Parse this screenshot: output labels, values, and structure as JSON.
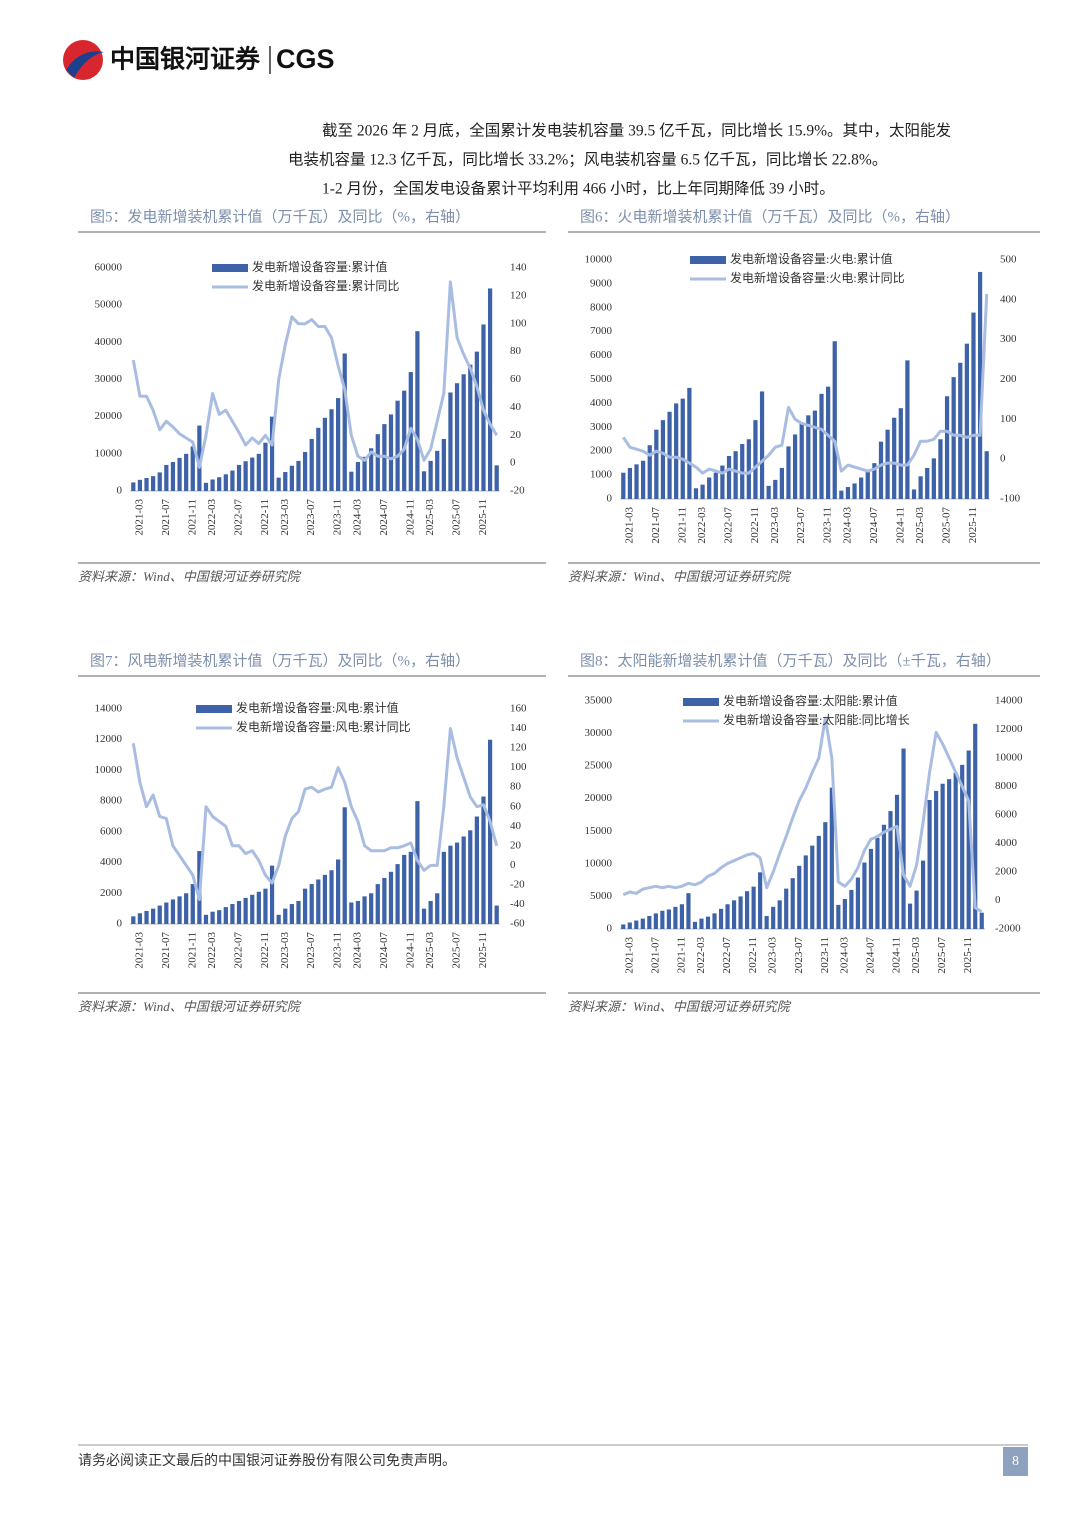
{
  "header": {
    "logo_cn": "中国银河证券",
    "logo_en": "CGS"
  },
  "paragraph_lines": [
    "截至 2026 年 2 月底，全国累计发电装机容量 39.5 亿千瓦，同比增长 15.9%。其中，太阳能发",
    "电装机容量 12.3 亿千瓦，同比增长 33.2%；风电装机容量 6.5 亿千瓦，同比增长 22.8%。",
    "1-2 月份，全国发电设备累计平均利用 466 小时，比上年同期降低 39 小时。"
  ],
  "chart_data": [
    {
      "type": "combo",
      "title": "图5：发电新增装机累计值（万千瓦）及同比（%，右轴）",
      "source": "资料来源：Wind、中国银河证券研究院",
      "categories": [
        null,
        "2021-03",
        null,
        null,
        null,
        "2021-07",
        null,
        null,
        null,
        "2021-11",
        null,
        null,
        "2022-03",
        null,
        null,
        null,
        "2022-07",
        null,
        null,
        null,
        "2022-11",
        null,
        null,
        "2023-03",
        null,
        null,
        null,
        "2023-07",
        null,
        null,
        null,
        "2023-11",
        null,
        null,
        "2024-03",
        null,
        null,
        null,
        "2024-07",
        null,
        null,
        null,
        "2024-11",
        null,
        null,
        "2025-03",
        null,
        null,
        null,
        "2025-07",
        null,
        null,
        null,
        "2025-11",
        null,
        null
      ],
      "series": [
        {
          "name": "发电新增设备容量:累计值",
          "type": "bar",
          "color": "#3d62a8",
          "values": [
            2300,
            3000,
            3500,
            4000,
            5000,
            7000,
            7800,
            8900,
            10000,
            12000,
            17600,
            2200,
            3100,
            3700,
            4500,
            5500,
            7000,
            8000,
            9000,
            10000,
            13000,
            20000,
            3600,
            5100,
            6800,
            8100,
            10500,
            14000,
            17000,
            19700,
            22000,
            25000,
            37000,
            5200,
            7800,
            9200,
            11500,
            15300,
            18000,
            20600,
            24300,
            27000,
            32000,
            43000,
            5300,
            8100,
            10800,
            14000,
            26500,
            29000,
            31400,
            34000,
            37500,
            44800,
            54500,
            6900
          ]
        },
        {
          "name": "发电新增设备容量:累计同比",
          "type": "line",
          "axis": "y2",
          "color": "#a9bde2",
          "values": [
            74,
            48,
            48,
            38,
            24,
            30,
            26,
            21,
            18,
            15,
            -3,
            20,
            50,
            35,
            38,
            30,
            22,
            13,
            18,
            14,
            20,
            13,
            60,
            85,
            105,
            100,
            100,
            103,
            98,
            98,
            90,
            70,
            53,
            20,
            5,
            2,
            8,
            5,
            5,
            3,
            5,
            10,
            25,
            17,
            2,
            10,
            30,
            50,
            130,
            90,
            78,
            68,
            55,
            38,
            28,
            20
          ]
        }
      ],
      "ylim": [
        0,
        60000
      ],
      "yticks": [
        0,
        10000,
        20000,
        30000,
        40000,
        50000,
        60000
      ],
      "y2lim": [
        -20,
        140
      ],
      "y2ticks": [
        -20,
        0,
        20,
        40,
        60,
        80,
        100,
        120,
        140
      ],
      "grid": false
    },
    {
      "type": "combo",
      "title": "图6：火电新增装机累计值（万千瓦）及同比（%，右轴）",
      "source": "资料来源：Wind、中国银河证券研究院",
      "categories": [
        null,
        "2021-03",
        null,
        null,
        null,
        "2021-07",
        null,
        null,
        null,
        "2021-11",
        null,
        null,
        "2022-03",
        null,
        null,
        null,
        "2022-07",
        null,
        null,
        null,
        "2022-11",
        null,
        null,
        "2023-03",
        null,
        null,
        null,
        "2023-07",
        null,
        null,
        null,
        "2023-11",
        null,
        null,
        "2024-03",
        null,
        null,
        null,
        "2024-07",
        null,
        null,
        null,
        "2024-11",
        null,
        null,
        "2025-03",
        null,
        null,
        null,
        "2025-07",
        null,
        null,
        null,
        "2025-11",
        null,
        null
      ],
      "series": [
        {
          "name": "发电新增设备容量:火电:累计值",
          "type": "bar",
          "color": "#3d62a8",
          "values": [
            1100,
            1300,
            1450,
            1600,
            2250,
            2900,
            3300,
            3650,
            4000,
            4200,
            4650,
            450,
            600,
            900,
            1100,
            1400,
            1800,
            2000,
            2300,
            2500,
            3300,
            4500,
            550,
            800,
            1300,
            2200,
            2700,
            3200,
            3500,
            3700,
            4400,
            4700,
            6600,
            350,
            500,
            650,
            900,
            1200,
            1500,
            2400,
            2900,
            3400,
            3800,
            5800,
            400,
            950,
            1300,
            1700,
            2500,
            4300,
            5100,
            5700,
            6500,
            7800,
            9500,
            2000
          ]
        },
        {
          "name": "发电新增设备容量:火电:累计同比",
          "type": "line",
          "axis": "y2",
          "color": "#a9bde2",
          "values": [
            55,
            30,
            25,
            20,
            10,
            20,
            15,
            5,
            5,
            0,
            -10,
            -20,
            -35,
            -25,
            -30,
            -35,
            -25,
            -30,
            -35,
            -35,
            -20,
            -5,
            10,
            30,
            35,
            130,
            100,
            90,
            85,
            80,
            75,
            60,
            45,
            -30,
            -15,
            -20,
            -25,
            -30,
            -25,
            -15,
            -10,
            -10,
            -15,
            -15,
            10,
            45,
            45,
            50,
            70,
            70,
            60,
            60,
            55,
            60,
            60,
            415
          ]
        }
      ],
      "ylim": [
        0,
        10000
      ],
      "yticks": [
        0,
        1000,
        2000,
        3000,
        4000,
        5000,
        6000,
        7000,
        8000,
        9000,
        10000
      ],
      "y2lim": [
        -100,
        500
      ],
      "y2ticks": [
        -100,
        0,
        100,
        200,
        300,
        400,
        500
      ],
      "grid": false
    },
    {
      "type": "combo",
      "title": "图7：风电新增装机累计值（万千瓦）及同比（%，右轴）",
      "source": "资料来源：Wind、中国银河证券研究院",
      "categories": [
        null,
        "2021-03",
        null,
        null,
        null,
        "2021-07",
        null,
        null,
        null,
        "2021-11",
        null,
        null,
        "2022-03",
        null,
        null,
        null,
        "2022-07",
        null,
        null,
        null,
        "2022-11",
        null,
        null,
        "2023-03",
        null,
        null,
        null,
        "2023-07",
        null,
        null,
        null,
        "2023-11",
        null,
        null,
        "2024-03",
        null,
        null,
        null,
        "2024-07",
        null,
        null,
        null,
        "2024-11",
        null,
        null,
        "2025-03",
        null,
        null,
        null,
        "2025-07",
        null,
        null,
        null,
        "2025-11",
        null,
        null
      ],
      "series": [
        {
          "name": "发电新增设备容量:风电:累计值",
          "type": "bar",
          "color": "#3d62a8",
          "values": [
            500,
            700,
            850,
            1000,
            1200,
            1400,
            1600,
            1800,
            2000,
            2600,
            4750,
            600,
            800,
            900,
            1100,
            1300,
            1500,
            1700,
            1900,
            2100,
            2300,
            3800,
            600,
            1000,
            1300,
            1500,
            2300,
            2600,
            2900,
            3200,
            3500,
            4200,
            7600,
            1400,
            1500,
            1800,
            2000,
            2600,
            3000,
            3400,
            3900,
            4500,
            4700,
            8000,
            1000,
            1500,
            2000,
            4700,
            5100,
            5300,
            5700,
            6100,
            7000,
            8300,
            12000,
            1200
          ]
        },
        {
          "name": "发电新增设备容量:风电:累计同比",
          "type": "line",
          "axis": "y2",
          "color": "#a9bde2",
          "values": [
            125,
            85,
            60,
            72,
            50,
            48,
            20,
            10,
            0,
            -10,
            -35,
            60,
            50,
            45,
            40,
            20,
            20,
            12,
            15,
            5,
            -10,
            -18,
            0,
            30,
            48,
            55,
            78,
            80,
            75,
            78,
            80,
            100,
            85,
            60,
            45,
            20,
            15,
            15,
            15,
            18,
            18,
            20,
            23,
            5,
            -5,
            0,
            0,
            60,
            140,
            110,
            90,
            70,
            60,
            62,
            45,
            20
          ]
        }
      ],
      "ylim": [
        0,
        14000
      ],
      "yticks": [
        0,
        2000,
        4000,
        6000,
        8000,
        10000,
        12000,
        14000
      ],
      "y2lim": [
        -60,
        160
      ],
      "y2ticks": [
        -60,
        -40,
        -20,
        0,
        20,
        40,
        60,
        80,
        100,
        120,
        140,
        160
      ],
      "grid": false
    },
    {
      "type": "combo",
      "title": "图8：太阳能新增装机累计值（万千瓦）及同比（±千瓦，右轴）",
      "source": "资料来源：Wind、中国银河证券研究院",
      "categories": [
        null,
        "2021-03",
        null,
        null,
        null,
        "2021-07",
        null,
        null,
        null,
        "2021-11",
        null,
        null,
        "2022-03",
        null,
        null,
        null,
        "2022-07",
        null,
        null,
        null,
        "2022-11",
        null,
        null,
        "2023-03",
        null,
        null,
        null,
        "2023-07",
        null,
        null,
        null,
        "2023-11",
        null,
        null,
        "2024-03",
        null,
        null,
        null,
        "2024-07",
        null,
        null,
        null,
        "2024-11",
        null,
        null,
        "2025-03",
        null,
        null,
        null,
        "2025-07",
        null,
        null,
        null,
        "2025-11",
        null,
        null
      ],
      "series": [
        {
          "name": "发电新增设备容量:太阳能:累计值",
          "type": "bar",
          "color": "#3d62a8",
          "values": [
            700,
            1000,
            1300,
            1600,
            2000,
            2400,
            2800,
            3000,
            3400,
            3800,
            5500,
            1100,
            1600,
            1900,
            2400,
            3100,
            3800,
            4400,
            5000,
            5800,
            6500,
            8700,
            2000,
            3400,
            4400,
            6200,
            7800,
            9700,
            11300,
            12800,
            14300,
            16400,
            21700,
            3700,
            4600,
            6000,
            7900,
            10200,
            12300,
            14000,
            16000,
            18100,
            20600,
            27700,
            3900,
            5900,
            10500,
            19800,
            21200,
            22300,
            23000,
            24000,
            25200,
            27400,
            31500,
            2500
          ]
        },
        {
          "name": "发电新增设备容量:太阳能:同比增长",
          "type": "line",
          "axis": "y2",
          "color": "#a9bde2",
          "values": [
            400,
            600,
            500,
            800,
            900,
            1000,
            900,
            1000,
            900,
            1000,
            1200,
            1100,
            1300,
            1700,
            1900,
            2300,
            2600,
            2800,
            3000,
            3200,
            3300,
            3000,
            900,
            2000,
            3300,
            4500,
            5800,
            7000,
            7900,
            9000,
            10000,
            12800,
            10000,
            1300,
            1000,
            1500,
            2300,
            3500,
            4300,
            4500,
            4800,
            5000,
            5200,
            1800,
            1000,
            2500,
            5500,
            9000,
            11800,
            11000,
            10000,
            9000,
            8000,
            7000,
            -500,
            -800
          ]
        }
      ],
      "ylim": [
        0,
        35000
      ],
      "yticks": [
        0,
        5000,
        10000,
        15000,
        20000,
        25000,
        30000,
        35000
      ],
      "y2lim": [
        -2000,
        14000
      ],
      "y2ticks": [
        -2000,
        0,
        2000,
        4000,
        6000,
        8000,
        10000,
        12000,
        14000
      ],
      "grid": false
    }
  ],
  "footer": {
    "disclaimer": "请务必阅读正文最后的中国银河证券股份有限公司免责声明。",
    "page": "8"
  }
}
